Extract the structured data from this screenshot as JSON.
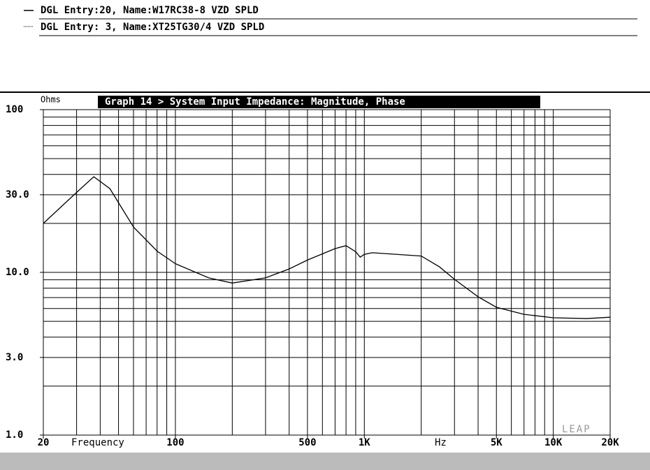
{
  "chart_data": {
    "type": "line",
    "legend_entries": [
      "DGL Entry:20, Name:W17RC38-8 VZD SPLD",
      "DGL Entry: 3, Name:XT25TG30/4 VZD SPLD"
    ],
    "title": "Graph 14 > System Input Impedance: Magnitude, Phase",
    "y_label": "Ohms",
    "x_label": "Frequency",
    "x_unit": "Hz",
    "logo": "LEAP",
    "x": [
      20,
      30,
      37,
      45,
      60,
      80,
      100,
      150,
      200,
      300,
      400,
      500,
      700,
      800,
      900,
      950,
      1000,
      1100,
      2000,
      2500,
      3000,
      4000,
      5000,
      7000,
      10000,
      15000,
      20000
    ],
    "series": [
      {
        "color": "#000000",
        "values": [
          20,
          31,
          38.7,
          32.7,
          19,
          13.5,
          11.3,
          9.25,
          8.6,
          9.25,
          10.5,
          11.9,
          14,
          14.6,
          13.4,
          12.4,
          12.9,
          13.2,
          12.6,
          10.8,
          9.06,
          7.08,
          6.1,
          5.52,
          5.26,
          5.2,
          5.3
        ]
      }
    ],
    "xscale": "log",
    "yscale": "log",
    "xlim": [
      20,
      20000
    ],
    "ylim": [
      1,
      100
    ],
    "xticks": [
      20,
      100,
      500,
      {
        "value": 1000,
        "label": "1K"
      },
      {
        "value": 5000,
        "label": "5K"
      },
      {
        "value": 10000,
        "label": "10K"
      },
      {
        "value": 20000,
        "label": "20K"
      }
    ],
    "yticks": [
      {
        "value": 1,
        "label": "1.0"
      },
      {
        "value": 3,
        "label": "3.0"
      },
      {
        "value": 10,
        "label": "10.0"
      },
      {
        "value": 30,
        "label": "30.0"
      },
      100
    ],
    "xgrid": [
      20,
      30,
      40,
      50,
      60,
      70,
      80,
      90,
      100,
      200,
      300,
      400,
      500,
      600,
      700,
      800,
      900,
      1000,
      2000,
      3000,
      4000,
      5000,
      6000,
      7000,
      8000,
      9000,
      10000,
      20000
    ],
    "ygrid": [
      1,
      2,
      3,
      4,
      5,
      6,
      7,
      8,
      9,
      10,
      20,
      30,
      40,
      50,
      60,
      70,
      80,
      90,
      100
    ],
    "grid": true
  }
}
